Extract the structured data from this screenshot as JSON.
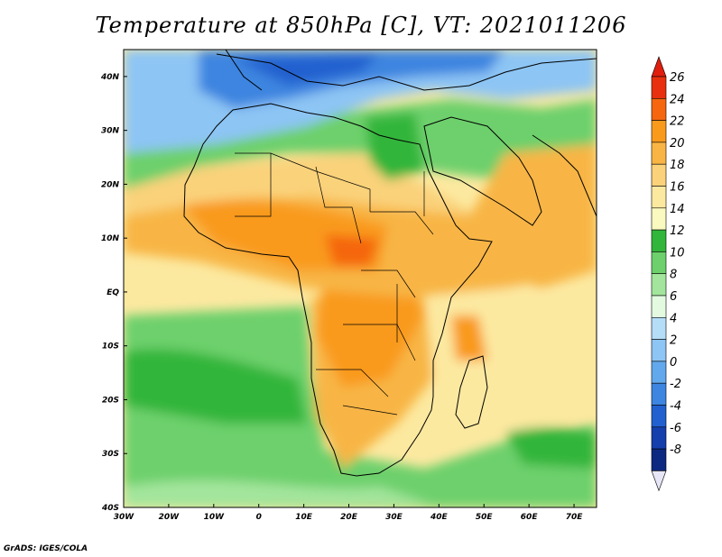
{
  "title": "Temperature at 850hPa [C], VT: 2021011206",
  "credit": "GrADS: IGES/COLA",
  "map": {
    "lon_range": [
      -30,
      75
    ],
    "lat_range": [
      -40,
      45
    ],
    "lon_ticks": [
      "30W",
      "20W",
      "10W",
      "0",
      "10E",
      "20E",
      "30E",
      "40E",
      "50E",
      "60E",
      "70E"
    ],
    "lon_values": [
      -30,
      -20,
      -10,
      0,
      10,
      20,
      30,
      40,
      50,
      60,
      70
    ],
    "lat_ticks": [
      "40N",
      "30N",
      "20N",
      "10N",
      "EQ",
      "10S",
      "20S",
      "30S",
      "40S"
    ],
    "lat_values": [
      40,
      30,
      20,
      10,
      0,
      -10,
      -20,
      -30,
      -40
    ]
  },
  "colorbar": {
    "labels": [
      "26",
      "24",
      "22",
      "20",
      "18",
      "16",
      "14",
      "12",
      "10",
      "8",
      "6",
      "4",
      "2",
      "0",
      "-2",
      "-4",
      "-6",
      "-8"
    ],
    "colors": [
      "#e8300e",
      "#f5660f",
      "#f99a1d",
      "#f8b545",
      "#fad27a",
      "#fce9a0",
      "#f9f9c0",
      "#31b53a",
      "#6dd06c",
      "#a3e59c",
      "#e3fae0",
      "#b5ddf7",
      "#8dc5f4",
      "#62a8ec",
      "#3d85e0",
      "#2260cf",
      "#143fad",
      "#0c2880"
    ],
    "top_color": "#e01e0e",
    "bottom_color": "#e6e6f8"
  }
}
